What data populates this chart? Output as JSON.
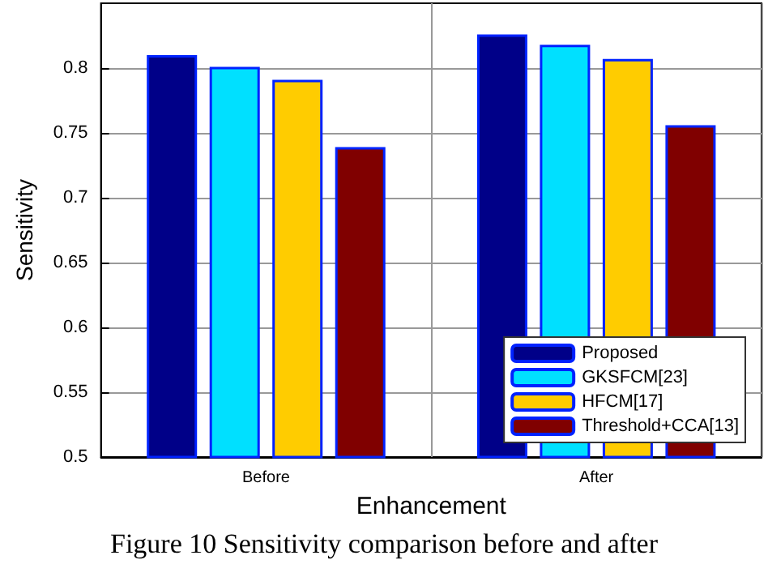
{
  "chart_data": {
    "type": "bar",
    "xlabel": "Enhancement",
    "ylabel": "Sensitivity",
    "categories": [
      "Before",
      "After"
    ],
    "series": [
      {
        "name": "Proposed",
        "color": "#000088",
        "values": [
          0.81,
          0.826
        ]
      },
      {
        "name": "GKSFCM[23]",
        "color": "#00e0ff",
        "values": [
          0.801,
          0.818
        ]
      },
      {
        "name": "HFCM[17]",
        "color": "#ffcc00",
        "values": [
          0.791,
          0.807
        ]
      },
      {
        "name": "Threshold+CCA[13]",
        "color": "#800000",
        "values": [
          0.739,
          0.756
        ]
      }
    ],
    "ylim": [
      0.5,
      0.85
    ],
    "yticks": [
      0.5,
      0.55,
      0.6,
      0.65,
      0.7,
      0.75,
      0.8
    ],
    "grid": true,
    "legend": "bottom right",
    "annotations": [
      "Figure 10 Sensitivity comparison before and after"
    ]
  }
}
